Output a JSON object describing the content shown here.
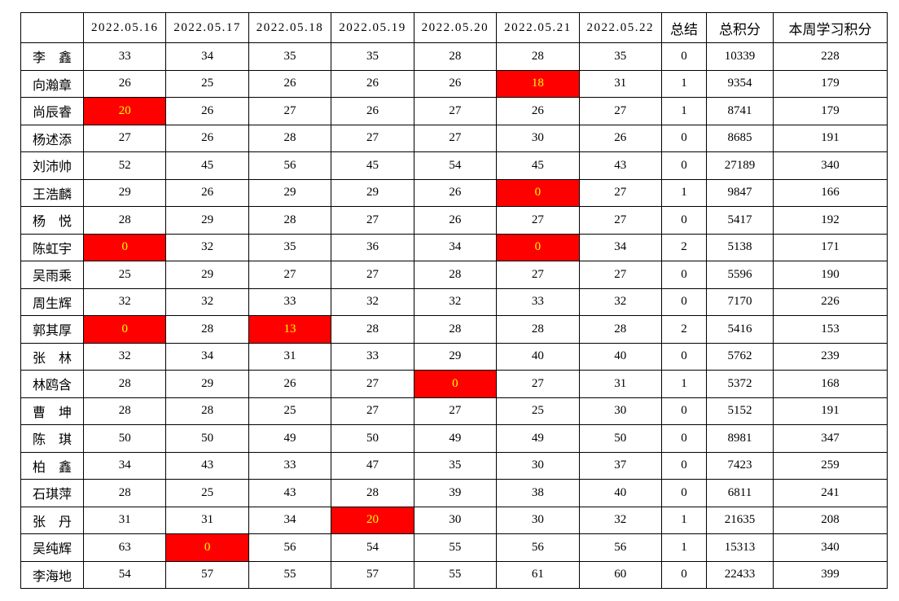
{
  "chart_data": {
    "type": "table",
    "columns": [
      "",
      "2022.05.16",
      "2022.05.17",
      "2022.05.18",
      "2022.05.19",
      "2022.05.20",
      "2022.05.21",
      "2022.05.22",
      "总结",
      "总积分",
      "本周学习积分"
    ],
    "rows": [
      {
        "name": "李　鑫",
        "daily": [
          33,
          34,
          35,
          35,
          28,
          28,
          35
        ],
        "highlight_days": [],
        "summary": 0,
        "total": 10339,
        "week": 228
      },
      {
        "name": "向瀚章",
        "daily": [
          26,
          25,
          26,
          26,
          26,
          18,
          31
        ],
        "highlight_days": [
          5
        ],
        "summary": 1,
        "total": 9354,
        "week": 179
      },
      {
        "name": "尚辰睿",
        "daily": [
          20,
          26,
          27,
          26,
          27,
          26,
          27
        ],
        "highlight_days": [
          0
        ],
        "summary": 1,
        "total": 8741,
        "week": 179
      },
      {
        "name": "杨述添",
        "daily": [
          27,
          26,
          28,
          27,
          27,
          30,
          26
        ],
        "highlight_days": [],
        "summary": 0,
        "total": 8685,
        "week": 191
      },
      {
        "name": "刘沛帅",
        "daily": [
          52,
          45,
          56,
          45,
          54,
          45,
          43
        ],
        "highlight_days": [],
        "summary": 0,
        "total": 27189,
        "week": 340
      },
      {
        "name": "王浩麟",
        "daily": [
          29,
          26,
          29,
          29,
          26,
          0,
          27
        ],
        "highlight_days": [
          5
        ],
        "summary": 1,
        "total": 9847,
        "week": 166
      },
      {
        "name": "杨　悦",
        "daily": [
          28,
          29,
          28,
          27,
          26,
          27,
          27
        ],
        "highlight_days": [],
        "summary": 0,
        "total": 5417,
        "week": 192
      },
      {
        "name": "陈虹宇",
        "daily": [
          0,
          32,
          35,
          36,
          34,
          0,
          34
        ],
        "highlight_days": [
          0,
          5
        ],
        "summary": 2,
        "total": 5138,
        "week": 171
      },
      {
        "name": "吴雨乘",
        "daily": [
          25,
          29,
          27,
          27,
          28,
          27,
          27
        ],
        "highlight_days": [],
        "summary": 0,
        "total": 5596,
        "week": 190
      },
      {
        "name": "周生辉",
        "daily": [
          32,
          32,
          33,
          32,
          32,
          33,
          32
        ],
        "highlight_days": [],
        "summary": 0,
        "total": 7170,
        "week": 226
      },
      {
        "name": "郭其厚",
        "daily": [
          0,
          28,
          13,
          28,
          28,
          28,
          28
        ],
        "highlight_days": [
          0,
          2
        ],
        "summary": 2,
        "total": 5416,
        "week": 153
      },
      {
        "name": "张　林",
        "daily": [
          32,
          34,
          31,
          33,
          29,
          40,
          40
        ],
        "highlight_days": [],
        "summary": 0,
        "total": 5762,
        "week": 239
      },
      {
        "name": "林鸥含",
        "daily": [
          28,
          29,
          26,
          27,
          0,
          27,
          31
        ],
        "highlight_days": [
          4
        ],
        "summary": 1,
        "total": 5372,
        "week": 168
      },
      {
        "name": "曹　坤",
        "daily": [
          28,
          28,
          25,
          27,
          27,
          25,
          30
        ],
        "highlight_days": [],
        "summary": 0,
        "total": 5152,
        "week": 191
      },
      {
        "name": "陈　琪",
        "daily": [
          50,
          50,
          49,
          50,
          49,
          49,
          50
        ],
        "highlight_days": [],
        "summary": 0,
        "total": 8981,
        "week": 347
      },
      {
        "name": "柏　鑫",
        "daily": [
          34,
          43,
          33,
          47,
          35,
          30,
          37
        ],
        "highlight_days": [],
        "summary": 0,
        "total": 7423,
        "week": 259
      },
      {
        "name": "石琪萍",
        "daily": [
          28,
          25,
          43,
          28,
          39,
          38,
          40
        ],
        "highlight_days": [],
        "summary": 0,
        "total": 6811,
        "week": 241
      },
      {
        "name": "张　丹",
        "daily": [
          31,
          31,
          34,
          20,
          30,
          30,
          32
        ],
        "highlight_days": [
          3
        ],
        "summary": 1,
        "total": 21635,
        "week": 208
      },
      {
        "name": "吴纯辉",
        "daily": [
          63,
          0,
          56,
          54,
          55,
          56,
          56
        ],
        "highlight_days": [
          1
        ],
        "summary": 1,
        "total": 15313,
        "week": 340
      },
      {
        "name": "李海地",
        "daily": [
          54,
          57,
          55,
          57,
          55,
          61,
          60
        ],
        "highlight_days": [],
        "summary": 0,
        "total": 22433,
        "week": 399
      }
    ],
    "colors": {
      "highlight_bg": "#FF0000",
      "highlight_text": "#FFFF00",
      "accent_text": "#FF0000",
      "grid": "#000000",
      "text": "#000000",
      "background": "#FFFFFF"
    }
  }
}
